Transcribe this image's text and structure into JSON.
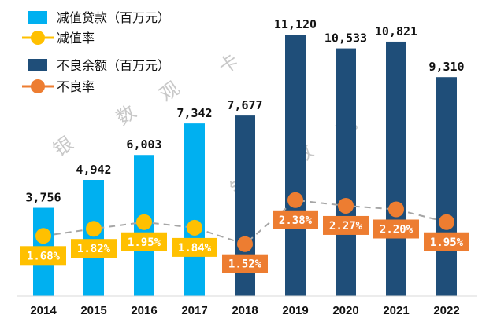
{
  "chart_data": {
    "type": "bar+line",
    "categories": [
      "2014",
      "2015",
      "2016",
      "2017",
      "2018",
      "2019",
      "2020",
      "2021",
      "2022"
    ],
    "series": [
      {
        "name": "减值贷款（百万元）",
        "kind": "bar",
        "color": "#00b0f0",
        "values": [
          3756,
          4942,
          6003,
          7342,
          null,
          null,
          null,
          null,
          null
        ],
        "labels": [
          "3,756",
          "4,942",
          "6,003",
          "7,342",
          null,
          null,
          null,
          null,
          null
        ]
      },
      {
        "name": "减值率",
        "kind": "line",
        "color": "#ffc000",
        "values": [
          1.68,
          1.82,
          1.95,
          1.84,
          null,
          null,
          null,
          null,
          null
        ],
        "labels": [
          "1.68%",
          "1.82%",
          "1.95%",
          "1.84%",
          null,
          null,
          null,
          null,
          null
        ]
      },
      {
        "name": "不良余额（百万元）",
        "kind": "bar",
        "color": "#1f4e79",
        "values": [
          null,
          null,
          null,
          null,
          7677,
          11120,
          10533,
          10821,
          9310
        ],
        "labels": [
          null,
          null,
          null,
          null,
          "7,677",
          "11,120",
          "10,533",
          "10,821",
          "9,310"
        ]
      },
      {
        "name": "不良率",
        "kind": "line",
        "color": "#ed7d31",
        "values": [
          null,
          null,
          null,
          null,
          1.52,
          2.38,
          2.27,
          2.2,
          1.95
        ],
        "labels": [
          null,
          null,
          null,
          null,
          "1.52%",
          "2.38%",
          "2.27%",
          "2.20%",
          "1.95%"
        ]
      }
    ],
    "connector_line_color": "#a6a6a6",
    "legend_position": "top-left",
    "grid": false
  },
  "watermark": {
    "text": [
      "银",
      "数",
      "观",
      "卡",
      "银",
      "数",
      "观",
      "卡"
    ]
  }
}
